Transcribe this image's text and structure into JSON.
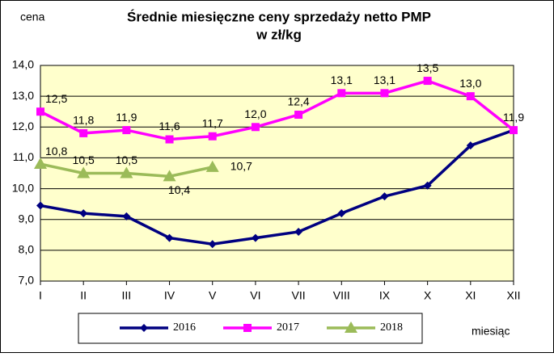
{
  "chart_data": {
    "type": "line",
    "title": "Średnie miesięczne ceny sprzedaży netto PMP",
    "subtitle": "w zł/kg",
    "y_label": "cena",
    "x_label": "miesiąc",
    "categories": [
      "I",
      "II",
      "III",
      "IV",
      "V",
      "VI",
      "VII",
      "VIII",
      "IX",
      "X",
      "XI",
      "XII"
    ],
    "ylim": [
      7,
      14
    ],
    "yticks": [
      {
        "value": 7,
        "label": "7,0"
      },
      {
        "value": 8,
        "label": "8,0"
      },
      {
        "value": 9,
        "label": "9,0"
      },
      {
        "value": 10,
        "label": "10,0"
      },
      {
        "value": 11,
        "label": "11,0"
      },
      {
        "value": 12,
        "label": "12,0"
      },
      {
        "value": 13,
        "label": "13,0"
      },
      {
        "value": 14,
        "label": "14,0"
      }
    ],
    "grid": true,
    "series": [
      {
        "name": "2016",
        "color": "#000080",
        "marker": "diamond",
        "values": [
          9.45,
          9.2,
          9.1,
          8.4,
          8.2,
          8.4,
          8.6,
          9.2,
          9.75,
          10.1,
          11.4,
          11.9
        ]
      },
      {
        "name": "2017",
        "color": "#ff00ff",
        "marker": "square",
        "values": [
          12.5,
          11.8,
          11.9,
          11.6,
          11.7,
          12.0,
          12.4,
          13.1,
          13.1,
          13.5,
          13.0,
          11.9
        ],
        "value_labels": [
          "12,5",
          "11,8",
          "11,9",
          "11,6",
          "11,7",
          "12,0",
          "12,4",
          "13,1",
          "13,1",
          "13,5",
          "13,0",
          "11,9"
        ]
      },
      {
        "name": "2018",
        "color": "#9bbb59",
        "marker": "triangle",
        "values": [
          10.8,
          10.5,
          10.5,
          10.4,
          10.7,
          null,
          null,
          null,
          null,
          null,
          null,
          null
        ],
        "value_labels": [
          "10,8",
          "10,5",
          "10,5",
          "10,4",
          "10,7",
          null,
          null,
          null,
          null,
          null,
          null,
          null
        ]
      }
    ]
  }
}
